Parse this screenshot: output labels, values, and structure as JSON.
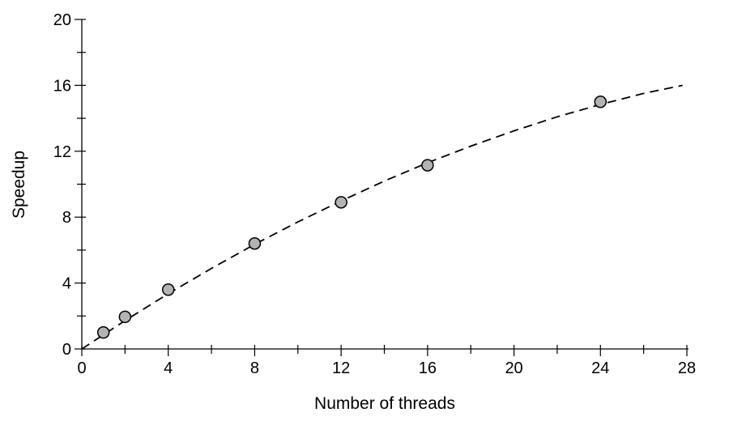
{
  "chart_data": {
    "type": "scatter",
    "title": "",
    "xlabel": "Number of threads",
    "ylabel": "Speedup",
    "xlim": [
      0,
      28
    ],
    "ylim": [
      0,
      20
    ],
    "x_ticks": [
      "0",
      "4",
      "8",
      "12",
      "16",
      "20",
      "24",
      "28"
    ],
    "y_ticks": [
      "0",
      "4",
      "8",
      "12",
      "16",
      "20"
    ],
    "minor_tick_step": 2,
    "grid": false,
    "series": [
      {
        "type": "scatter",
        "marker": "circle",
        "color": "#b3b3b3",
        "x": [
          1,
          2,
          4,
          8,
          12,
          16,
          24
        ],
        "y": [
          1.0,
          1.95,
          3.6,
          6.4,
          8.9,
          11.15,
          15.0
        ]
      },
      {
        "type": "line",
        "style": "dashed",
        "color": "#000000",
        "x": [
          0,
          2,
          4,
          6,
          8,
          10,
          12,
          14,
          16,
          18,
          20,
          22,
          24,
          26,
          27.8
        ],
        "y": [
          0,
          1.72,
          3.35,
          4.89,
          6.35,
          7.71,
          8.98,
          10.19,
          11.3,
          12.31,
          13.24,
          14.09,
          14.84,
          15.51,
          16.0
        ]
      }
    ]
  }
}
